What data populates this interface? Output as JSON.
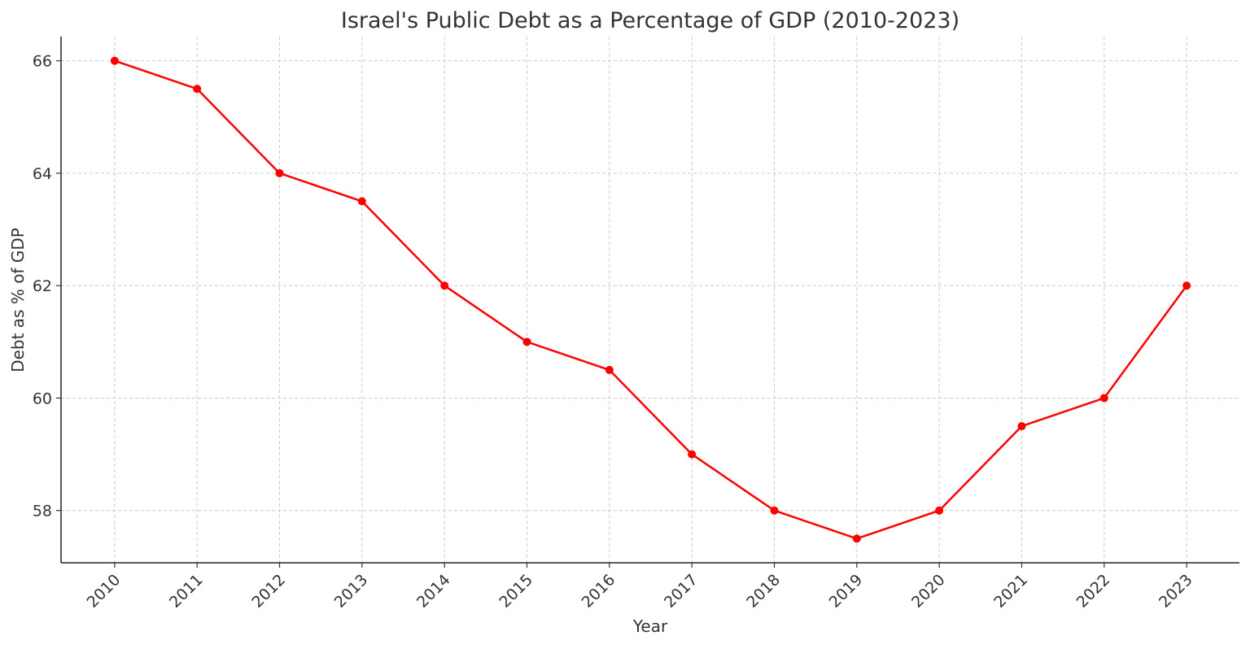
{
  "chart_data": {
    "type": "line",
    "title": "Israel's Public Debt as a Percentage of GDP (2010-2023)",
    "xlabel": "Year",
    "ylabel": "Debt as % of GDP",
    "x": [
      2010,
      2011,
      2012,
      2013,
      2014,
      2015,
      2016,
      2017,
      2018,
      2019,
      2020,
      2021,
      2022,
      2023
    ],
    "x_tick_labels": [
      "2010",
      "2011",
      "2012",
      "2013",
      "2014",
      "2015",
      "2016",
      "2017",
      "2018",
      "2019",
      "2020",
      "2021",
      "2022",
      "2023"
    ],
    "series": [
      {
        "values": [
          66,
          65.5,
          64,
          63.5,
          62,
          61,
          60.5,
          59,
          58,
          57.5,
          58,
          59.5,
          60,
          62
        ],
        "color": "#ff0000",
        "marker": "circle"
      }
    ],
    "y_ticks": [
      58,
      60,
      62,
      64,
      66
    ],
    "y_tick_labels": [
      "58",
      "60",
      "62",
      "64",
      "66"
    ],
    "xlim": [
      2009.35,
      2023.64
    ],
    "ylim": [
      57.07,
      66.43
    ],
    "grid": true,
    "grid_style": "dashed",
    "legend": "none"
  }
}
